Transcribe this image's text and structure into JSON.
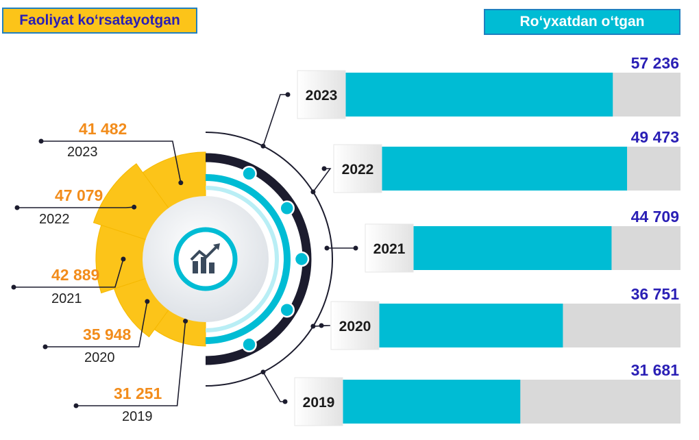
{
  "legend": {
    "active_label": "Faoliyat koʻrsatayotgan",
    "registered_label": "Roʻyxatdan oʻtgan"
  },
  "colors": {
    "active": "#fcc419",
    "registered": "#00bcd4",
    "value_orange": "#f28c1b",
    "value_blue": "#2a1fb5",
    "track": "#d9d9d9",
    "ring_dark": "#1c1c2e",
    "icon": "#3a4a5c"
  },
  "chart_data": [
    {
      "type": "pie",
      "series_name": "Faoliyat koʻrsatayotgan",
      "categories": [
        "2023",
        "2022",
        "2021",
        "2020",
        "2019"
      ],
      "values": [
        41482,
        47079,
        42889,
        35948,
        31251
      ],
      "value_labels": [
        "41 482",
        "47 079",
        "42 889",
        "35 948",
        "31 251"
      ]
    },
    {
      "type": "bar",
      "orientation": "horizontal",
      "series_name": "Roʻyxatdan oʻtgan",
      "categories": [
        "2023",
        "2022",
        "2021",
        "2020",
        "2019"
      ],
      "values": [
        57236,
        49473,
        44709,
        36751,
        31681
      ],
      "value_labels": [
        "57 236",
        "49 473",
        "44 709",
        "36 751",
        "31 681"
      ]
    }
  ],
  "icon": "growth-chart-icon"
}
